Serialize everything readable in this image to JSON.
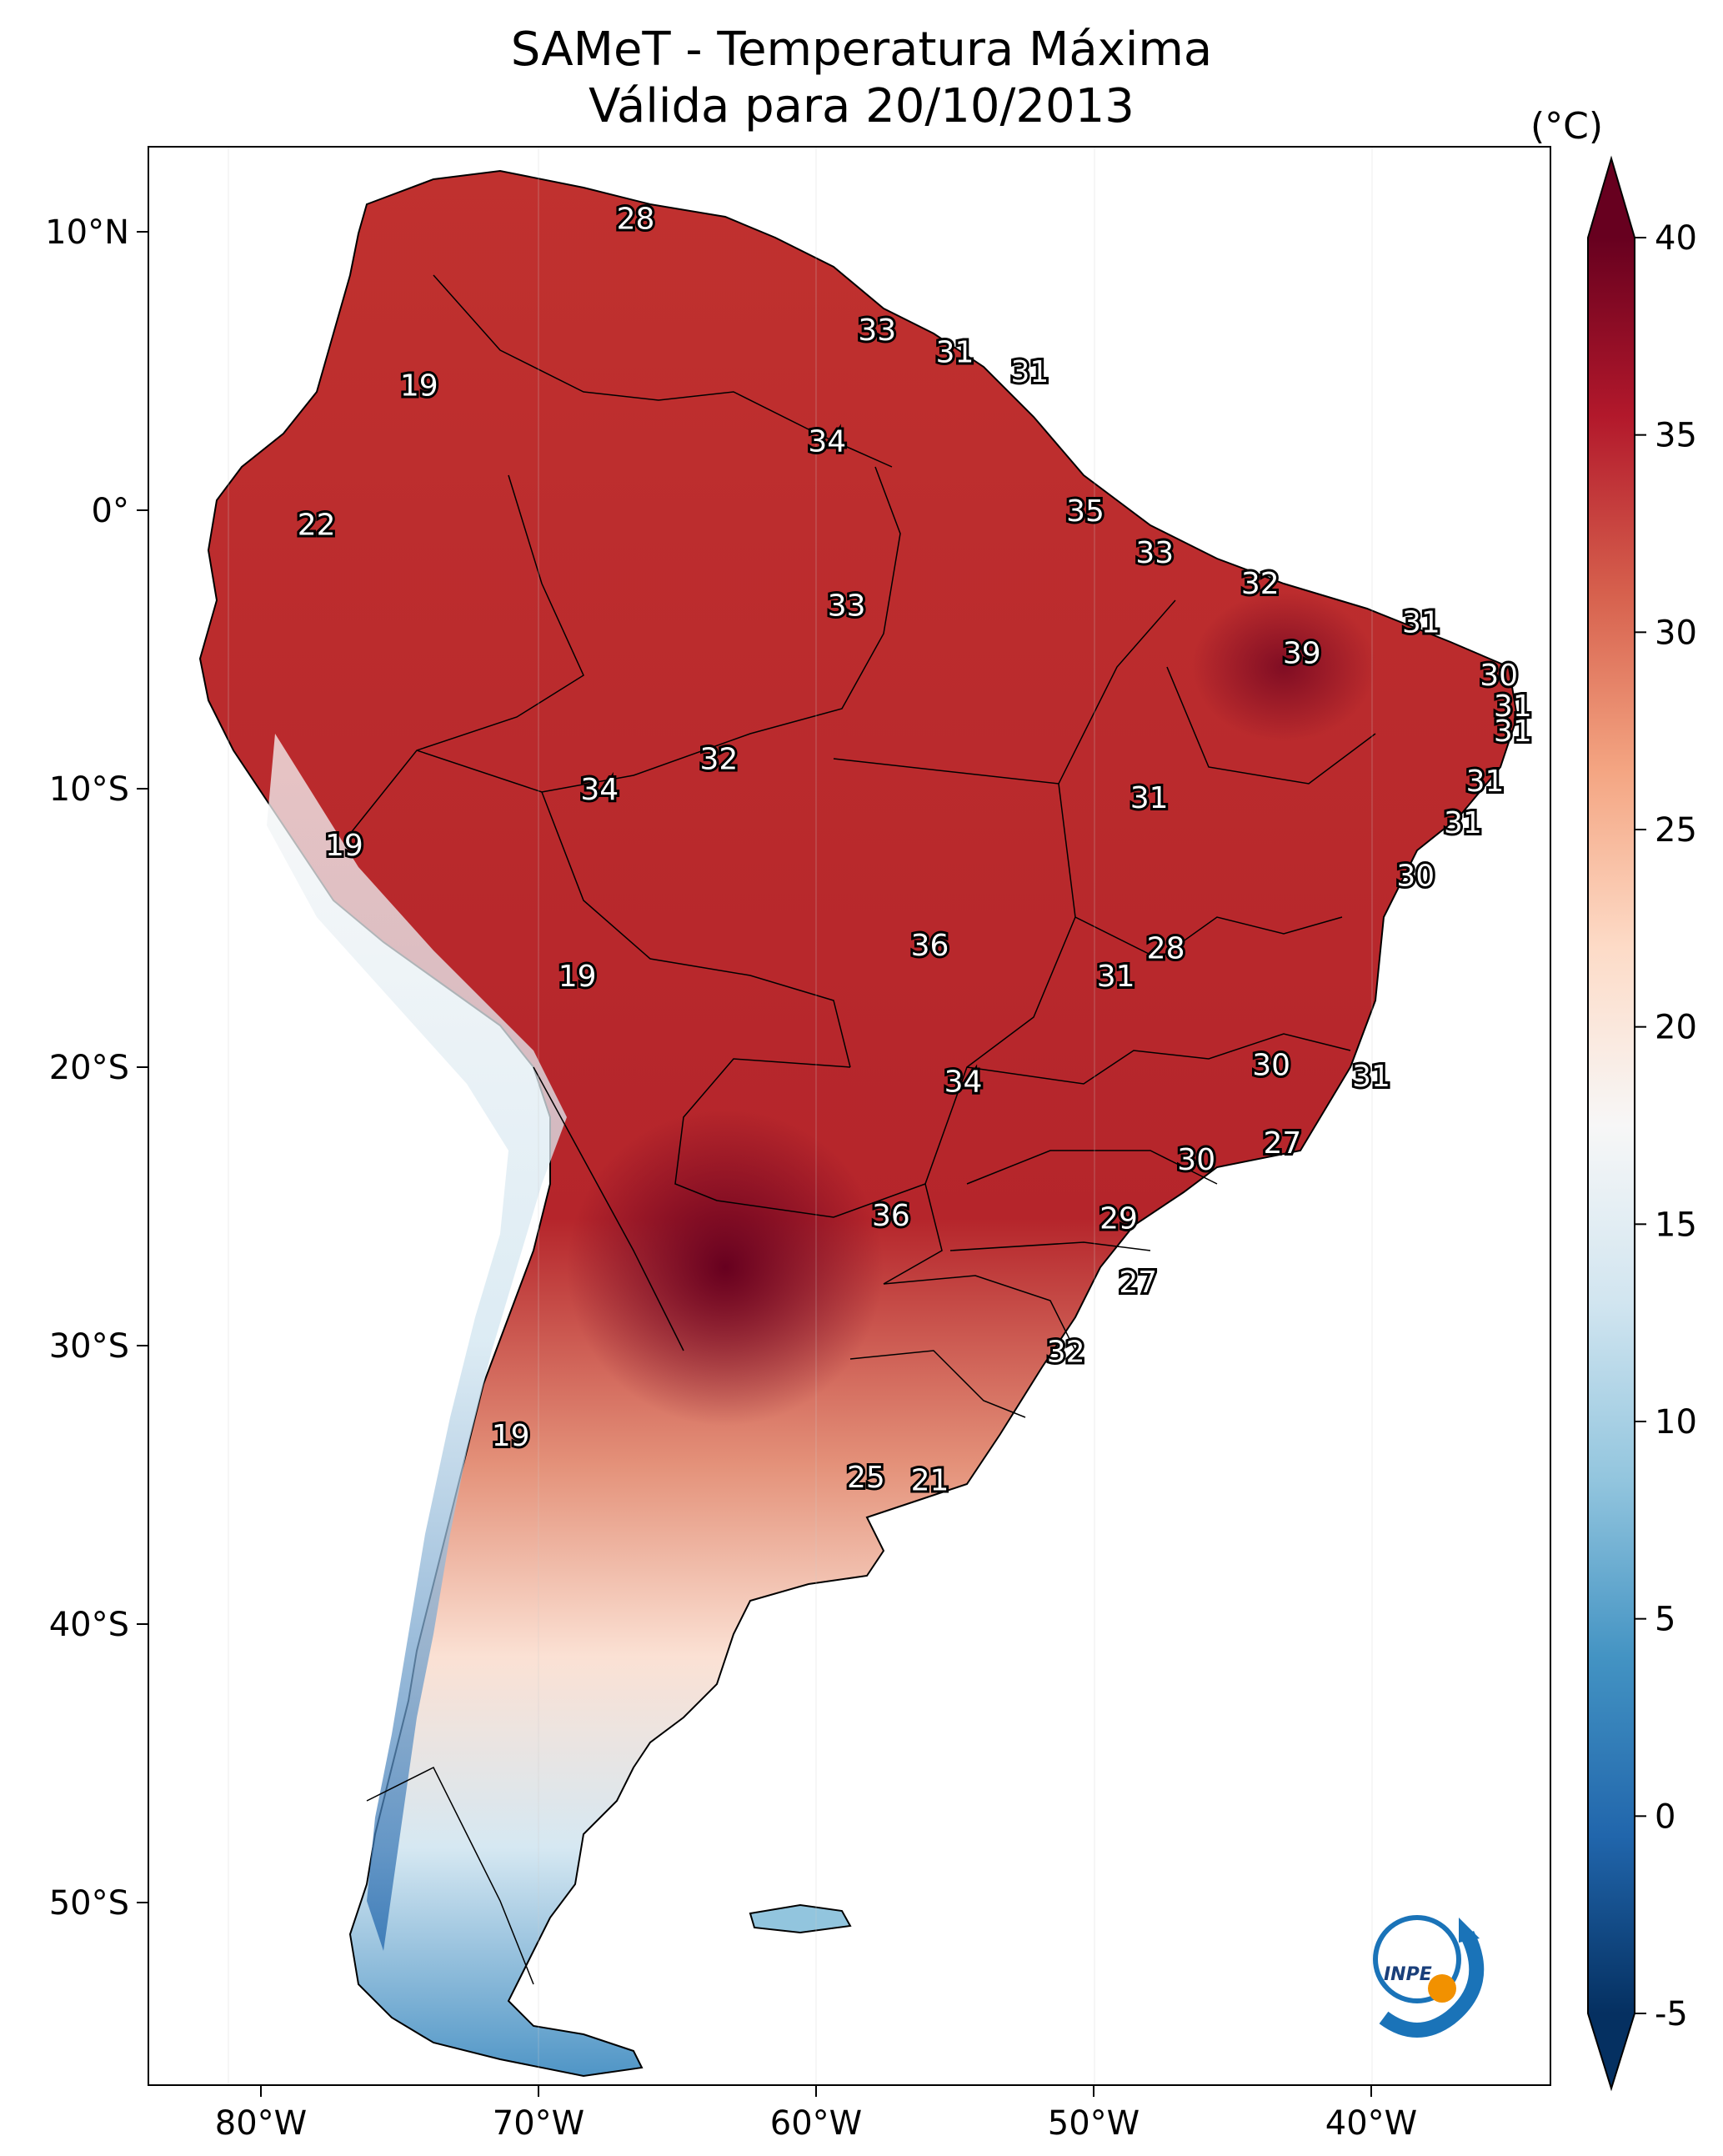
{
  "title_line1": "SAMeT - Temperatura Máxima",
  "title_line2": "Válida para 20/10/2013",
  "units": "(°C)",
  "logo_text": "INPE",
  "axes": {
    "lon_ticks": [
      "80°W",
      "70°W",
      "60°W",
      "50°W",
      "40°W"
    ],
    "lat_ticks": [
      "10°N",
      "0°",
      "10°S",
      "20°S",
      "30°S",
      "40°S",
      "50°S"
    ]
  },
  "colorbar": {
    "ticks": [
      "40",
      "35",
      "30",
      "25",
      "20",
      "15",
      "10",
      "5",
      "0",
      "-5"
    ],
    "range": [
      -5,
      40
    ],
    "cmap": "RdBu_r",
    "colors": [
      "#053061",
      "#2166ac",
      "#4393c3",
      "#92c5de",
      "#d1e5f0",
      "#f7f7f7",
      "#fddbc7",
      "#f4a582",
      "#d6604d",
      "#b2182b",
      "#67001f"
    ]
  },
  "contour_labels": [
    {
      "value": "28",
      "lon": -66.5,
      "lat": 10.5
    },
    {
      "value": "19",
      "lon": -74.3,
      "lat": 4.5
    },
    {
      "value": "33",
      "lon": -57.8,
      "lat": 6.5
    },
    {
      "value": "31",
      "lon": -55.0,
      "lat": 5.7
    },
    {
      "value": "31",
      "lon": -52.3,
      "lat": 5.0
    },
    {
      "value": "34",
      "lon": -59.6,
      "lat": 2.5
    },
    {
      "value": "22",
      "lon": -78.0,
      "lat": -0.5
    },
    {
      "value": "35",
      "lon": -50.3,
      "lat": 0.0
    },
    {
      "value": "33",
      "lon": -58.9,
      "lat": -3.4
    },
    {
      "value": "33",
      "lon": -47.8,
      "lat": -1.5
    },
    {
      "value": "32",
      "lon": -44.0,
      "lat": -2.6
    },
    {
      "value": "31",
      "lon": -38.2,
      "lat": -4.0
    },
    {
      "value": "39",
      "lon": -42.5,
      "lat": -5.1
    },
    {
      "value": "30",
      "lon": -35.4,
      "lat": -5.9
    },
    {
      "value": "31",
      "lon": -34.9,
      "lat": -7.0
    },
    {
      "value": "31",
      "lon": -34.9,
      "lat": -7.9
    },
    {
      "value": "32",
      "lon": -63.5,
      "lat": -8.9
    },
    {
      "value": "31",
      "lon": -35.9,
      "lat": -9.7
    },
    {
      "value": "34",
      "lon": -67.8,
      "lat": -10.0
    },
    {
      "value": "31",
      "lon": -48.0,
      "lat": -10.3
    },
    {
      "value": "31",
      "lon": -36.7,
      "lat": -11.2
    },
    {
      "value": "19",
      "lon": -77.0,
      "lat": -12.0
    },
    {
      "value": "30",
      "lon": -38.4,
      "lat": -13.1
    },
    {
      "value": "36",
      "lon": -55.9,
      "lat": -15.6
    },
    {
      "value": "28",
      "lon": -47.4,
      "lat": -15.7
    },
    {
      "value": "31",
      "lon": -49.2,
      "lat": -16.7
    },
    {
      "value": "19",
      "lon": -68.6,
      "lat": -16.7
    },
    {
      "value": "30",
      "lon": -43.6,
      "lat": -19.9
    },
    {
      "value": "31",
      "lon": -40.0,
      "lat": -20.3
    },
    {
      "value": "34",
      "lon": -54.7,
      "lat": -20.5
    },
    {
      "value": "27",
      "lon": -43.2,
      "lat": -22.7
    },
    {
      "value": "30",
      "lon": -46.3,
      "lat": -23.3
    },
    {
      "value": "36",
      "lon": -57.3,
      "lat": -25.3
    },
    {
      "value": "29",
      "lon": -49.1,
      "lat": -25.4
    },
    {
      "value": "27",
      "lon": -48.4,
      "lat": -27.7
    },
    {
      "value": "32",
      "lon": -51.0,
      "lat": -30.2
    },
    {
      "value": "19",
      "lon": -71.0,
      "lat": -33.2
    },
    {
      "value": "25",
      "lon": -58.2,
      "lat": -34.7
    },
    {
      "value": "21",
      "lon": -55.9,
      "lat": -34.8
    }
  ]
}
